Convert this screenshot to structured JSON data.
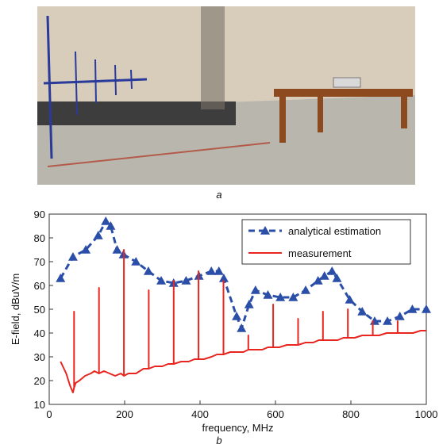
{
  "figure_labels": {
    "a": "a",
    "b": "b"
  },
  "chart_data": {
    "type": "line",
    "x_label": "frequency, MHz",
    "y_label": "E-field, dBuV/m",
    "xlim": [
      0,
      1000
    ],
    "xticks": [
      0,
      200,
      400,
      600,
      800,
      1000
    ],
    "ylim": [
      10,
      90
    ],
    "yticks": [
      10,
      20,
      30,
      40,
      50,
      60,
      70,
      80,
      90
    ],
    "legend": "upper right",
    "series": [
      {
        "name": "analytical estimation",
        "color": "#2b4fa8",
        "dashed": true,
        "marker": "triangle",
        "x": [
          30,
          63,
          97,
          130,
          150,
          163,
          180,
          197,
          230,
          263,
          297,
          330,
          363,
          397,
          430,
          450,
          463,
          497,
          510,
          530,
          547,
          580,
          613,
          647,
          680,
          713,
          730,
          750,
          763,
          797,
          830,
          863,
          897,
          930,
          963,
          1000
        ],
        "values": [
          63,
          72,
          75,
          81,
          87,
          85,
          75,
          73,
          70,
          66,
          62,
          61,
          62,
          64,
          66,
          66,
          63,
          47,
          42,
          52,
          58,
          56,
          55,
          55,
          58,
          62,
          64,
          66,
          63,
          54,
          49,
          45,
          45,
          47,
          50,
          50
        ]
      },
      {
        "name": "measurement",
        "color": "#e8251f",
        "dashed": false,
        "x": [
          30,
          45,
          55,
          63,
          66,
          66,
          66,
          70,
          80,
          95,
          110,
          120,
          132,
          132,
          132,
          145,
          160,
          175,
          190,
          198,
          198,
          198,
          210,
          230,
          250,
          264,
          264,
          264,
          280,
          300,
          315,
          330,
          330,
          330,
          350,
          370,
          385,
          396,
          396,
          396,
          410,
          430,
          445,
          462,
          462,
          462,
          480,
          500,
          515,
          528,
          528,
          528,
          545,
          565,
          580,
          594,
          594,
          594,
          610,
          630,
          645,
          660,
          660,
          660,
          680,
          700,
          715,
          726,
          726,
          726,
          745,
          765,
          780,
          792,
          792,
          792,
          810,
          830,
          845,
          858,
          858,
          858,
          875,
          895,
          910,
          924,
          924,
          924,
          945,
          965,
          985,
          1000
        ],
        "values": [
          28,
          23,
          18,
          15,
          17,
          49,
          17,
          19,
          20,
          22,
          23,
          24,
          23,
          59,
          23,
          24,
          23,
          22,
          23,
          22,
          75,
          22,
          23,
          23,
          25,
          25,
          58,
          25,
          26,
          26,
          27,
          27,
          62,
          27,
          28,
          28,
          29,
          29,
          66,
          29,
          29,
          30,
          31,
          31,
          62,
          31,
          32,
          32,
          32,
          33,
          39,
          33,
          33,
          33,
          34,
          34,
          52,
          34,
          34,
          35,
          35,
          35,
          46,
          35,
          36,
          36,
          37,
          37,
          49,
          37,
          37,
          37,
          38,
          38,
          50,
          38,
          38,
          39,
          39,
          39,
          45,
          39,
          39,
          40,
          40,
          40,
          45,
          40,
          40,
          40,
          41,
          41
        ]
      }
    ]
  }
}
